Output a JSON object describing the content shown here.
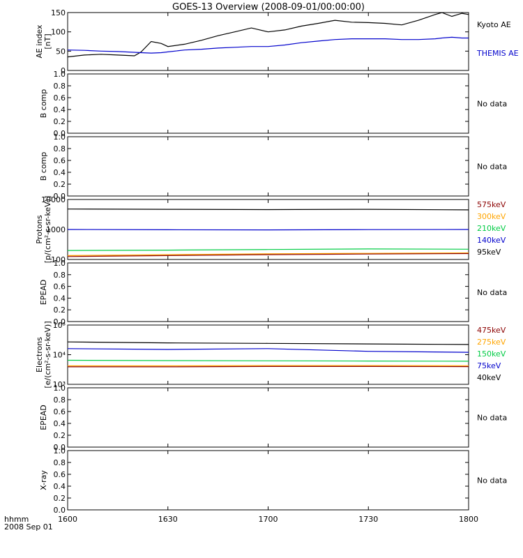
{
  "title": "GOES-13 Overview (2008-09-01/00:00:00)",
  "x_axis": {
    "ticks": [
      "1600",
      "1630",
      "1700",
      "1730",
      "1800"
    ],
    "left_label": "hhmm",
    "date_label": "2008 Sep 01"
  },
  "panels": [
    {
      "id": "ae",
      "ylabel": [
        "AE index",
        "[nT]"
      ],
      "yticks": [
        "0",
        "50",
        "100",
        "150"
      ],
      "legend": [
        {
          "text": "Kyoto AE",
          "color": "#000000"
        },
        {
          "text": "THEMIS AE",
          "color": "#0000cc"
        }
      ]
    },
    {
      "id": "bcomp1",
      "ylabel": [
        "B comp"
      ],
      "yticks": [
        "0.0",
        "0.2",
        "0.4",
        "0.6",
        "0.8",
        "1.0"
      ],
      "nodata": "No data"
    },
    {
      "id": "bcomp2",
      "ylabel": [
        "B comp"
      ],
      "yticks": [
        "0.0",
        "0.2",
        "0.4",
        "0.6",
        "0.8",
        "1.0"
      ],
      "nodata": "No data"
    },
    {
      "id": "protons",
      "ylabel": [
        "Protons",
        "[p/(cm²-s-sr-keV)]"
      ],
      "yticks": [
        "100",
        "1000",
        "10000"
      ],
      "legend": [
        {
          "text": "575keV",
          "color": "#8b0000"
        },
        {
          "text": "300keV",
          "color": "#ffa500"
        },
        {
          "text": "210keV",
          "color": "#00cc44"
        },
        {
          "text": "140keV",
          "color": "#0000cc"
        },
        {
          "text": "95keV",
          "color": "#000000"
        }
      ]
    },
    {
      "id": "epead1",
      "ylabel": [
        "EPEAD"
      ],
      "yticks": [
        "0.0",
        "0.2",
        "0.4",
        "0.6",
        "0.8",
        "1.0"
      ],
      "nodata": "No data"
    },
    {
      "id": "electrons",
      "ylabel": [
        "Electrons",
        "[e/(cm²-s-sr-keV)]"
      ],
      "yticks": [
        "10³",
        "10⁴",
        "10⁵"
      ],
      "legend": [
        {
          "text": "475keV",
          "color": "#8b0000"
        },
        {
          "text": "275keV",
          "color": "#ffa500"
        },
        {
          "text": "150keV",
          "color": "#00cc44"
        },
        {
          "text": "75keV",
          "color": "#0000cc"
        },
        {
          "text": "40keV",
          "color": "#000000"
        }
      ]
    },
    {
      "id": "epead2",
      "ylabel": [
        "EPEAD"
      ],
      "yticks": [
        "0.0",
        "0.2",
        "0.4",
        "0.6",
        "0.8",
        "1.0"
      ],
      "nodata": "No data"
    },
    {
      "id": "xray",
      "ylabel": [
        "X-ray"
      ],
      "yticks": [
        "0.0",
        "0.2",
        "0.4",
        "0.6",
        "0.8",
        "1.0"
      ],
      "nodata": "No data"
    }
  ],
  "chart_data": [
    {
      "type": "line",
      "panel": "ae",
      "ylim": [
        0,
        150
      ],
      "x": [
        1600,
        1605,
        1610,
        1615,
        1620,
        1622,
        1625,
        1628,
        1630,
        1635,
        1640,
        1645,
        1650,
        1655,
        1700,
        1705,
        1710,
        1715,
        1720,
        1725,
        1730,
        1735,
        1740,
        1745,
        1750,
        1752,
        1755,
        1758,
        1800
      ],
      "series": [
        {
          "name": "Kyoto AE",
          "color": "#000000",
          "values": [
            35,
            40,
            42,
            40,
            38,
            48,
            75,
            70,
            62,
            68,
            78,
            90,
            100,
            110,
            100,
            105,
            115,
            122,
            130,
            125,
            124,
            122,
            118,
            130,
            145,
            150,
            140,
            148,
            145
          ]
        },
        {
          "name": "THEMIS AE",
          "color": "#0000cc",
          "values": [
            53,
            52,
            50,
            49,
            47,
            46,
            45,
            46,
            48,
            53,
            55,
            58,
            60,
            62,
            62,
            66,
            72,
            76,
            80,
            82,
            82,
            82,
            80,
            80,
            82,
            84,
            86,
            84,
            84
          ]
        }
      ]
    },
    {
      "type": "line",
      "panel": "protons",
      "log": true,
      "ylim": [
        100,
        10000
      ],
      "x": [
        1600,
        1630,
        1700,
        1730,
        1800
      ],
      "series": [
        {
          "name": "95keV",
          "color": "#000000",
          "values": [
            4800,
            4700,
            4600,
            4700,
            4500
          ]
        },
        {
          "name": "140keV",
          "color": "#0000cc",
          "values": [
            1000,
            980,
            970,
            990,
            1000
          ]
        },
        {
          "name": "210keV",
          "color": "#00cc44",
          "values": [
            200,
            205,
            215,
            225,
            220
          ]
        },
        {
          "name": "300keV",
          "color": "#ffa500",
          "values": [
            135,
            145,
            155,
            160,
            165
          ]
        },
        {
          "name": "575keV",
          "color": "#8b0000",
          "values": [
            125,
            135,
            145,
            152,
            158
          ]
        }
      ]
    },
    {
      "type": "line",
      "panel": "electrons",
      "log": true,
      "ylim": [
        1000,
        100000
      ],
      "x": [
        1600,
        1630,
        1700,
        1730,
        1800
      ],
      "series": [
        {
          "name": "40keV",
          "color": "#000000",
          "values": [
            27000,
            25000,
            24000,
            23000,
            22000
          ]
        },
        {
          "name": "75keV",
          "color": "#0000cc",
          "values": [
            16000,
            15000,
            16000,
            13000,
            12000
          ]
        },
        {
          "name": "150keV",
          "color": "#00cc44",
          "values": [
            6500,
            6300,
            6200,
            6100,
            6000
          ]
        },
        {
          "name": "275keV",
          "color": "#ffa500",
          "values": [
            4200,
            4200,
            4300,
            4300,
            4250
          ]
        },
        {
          "name": "475keV",
          "color": "#8b0000",
          "values": [
            3900,
            3900,
            4000,
            4000,
            3950
          ]
        }
      ]
    }
  ]
}
